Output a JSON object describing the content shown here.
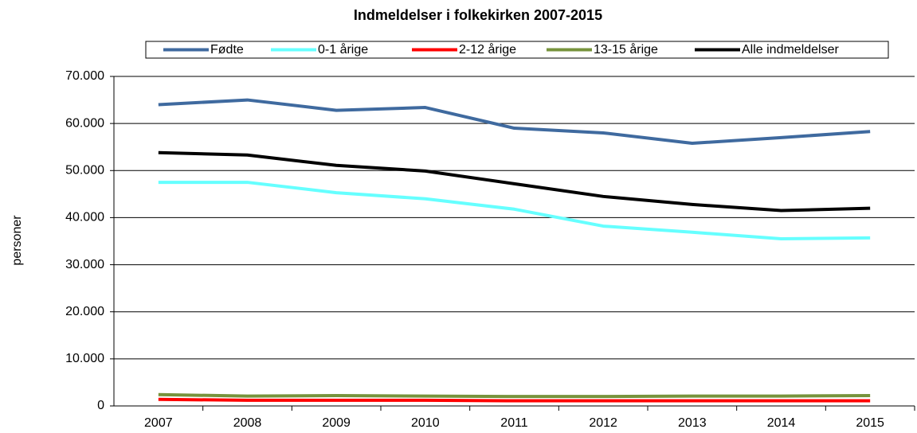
{
  "chart_data": {
    "type": "line",
    "title": "Indmeldelser i folkekirken 2007-2015",
    "y_label": "personer",
    "categories": [
      "2007",
      "2008",
      "2009",
      "2010",
      "2011",
      "2012",
      "2013",
      "2014",
      "2015"
    ],
    "series": [
      {
        "name": "Fødte",
        "color": "#3f6a9f",
        "values": [
          64000,
          65000,
          62800,
          63400,
          59000,
          58000,
          55800,
          57000,
          58300
        ]
      },
      {
        "name": "0-1 årige",
        "color": "#66ffff",
        "values": [
          47500,
          47500,
          45300,
          44000,
          41800,
          38200,
          36900,
          35500,
          35700
        ]
      },
      {
        "name": "2-12 årige",
        "color": "#ff0000",
        "values": [
          1400,
          1200,
          1200,
          1200,
          1100,
          1100,
          1100,
          1100,
          1100
        ]
      },
      {
        "name": "13-15 årige",
        "color": "#77933c",
        "values": [
          2400,
          2100,
          2200,
          2100,
          2000,
          2000,
          2100,
          2100,
          2200
        ]
      },
      {
        "name": "Alle indmeldelser",
        "color": "#000000",
        "values": [
          53800,
          53300,
          51100,
          49900,
          47200,
          44500,
          42800,
          41500,
          42000
        ]
      }
    ],
    "ylim": [
      0,
      70000
    ],
    "yticks": [
      0,
      {
        "value": 10000,
        "label": "10.000"
      },
      {
        "value": 20000,
        "label": "20.000"
      },
      {
        "value": 30000,
        "label": "30.000"
      },
      {
        "value": 40000,
        "label": "40.000"
      },
      {
        "value": 50000,
        "label": "50.000"
      },
      {
        "value": 60000,
        "label": "60.000"
      },
      {
        "value": 70000,
        "label": "70.000"
      }
    ],
    "grid": true,
    "legend": "top"
  }
}
